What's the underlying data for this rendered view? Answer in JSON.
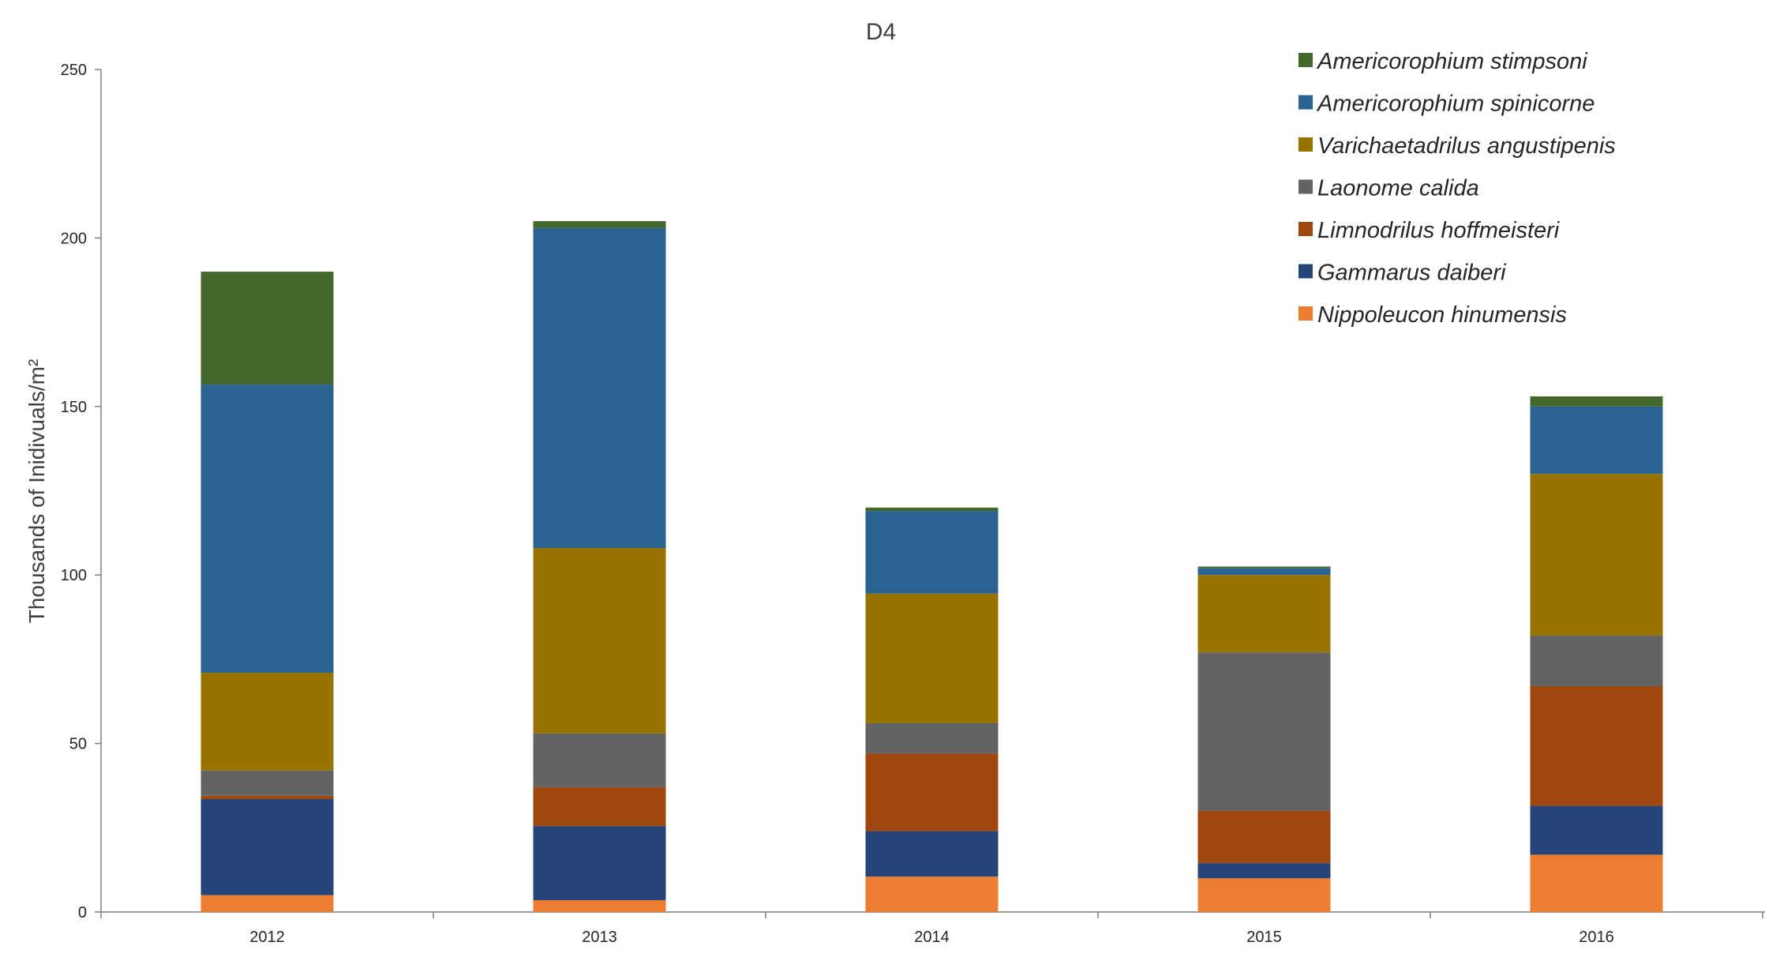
{
  "chart_data": {
    "type": "bar",
    "stacked": true,
    "title": "D4",
    "xlabel": "",
    "ylabel": "Thousands of Inidivuals/m²",
    "ylim": [
      0,
      250
    ],
    "yticks": [
      0,
      50,
      100,
      150,
      200,
      250
    ],
    "grid": false,
    "legend_position": "top-right",
    "categories": [
      "2012",
      "2013",
      "2014",
      "2015",
      "2016"
    ],
    "series": [
      {
        "name": "Nippoleucon hinumensis",
        "color": "#ED7D31",
        "values": [
          5,
          3.5,
          10.5,
          10,
          17
        ]
      },
      {
        "name": "Gammarus daiberi",
        "color": "#264478",
        "values": [
          28.5,
          22,
          13.5,
          4.5,
          14.5
        ]
      },
      {
        "name": "Limnodrilus hoffmeisteri",
        "color": "#9E480E",
        "values": [
          1,
          11.5,
          23,
          15.5,
          35.5
        ]
      },
      {
        "name": "Laonome calida",
        "color": "#636363",
        "values": [
          7.5,
          16,
          9,
          47,
          15
        ]
      },
      {
        "name": "Varichaetadrilus angustipenis",
        "color": "#997300",
        "values": [
          29,
          55,
          38.5,
          23,
          48
        ]
      },
      {
        "name": "Americorophium spinicorne",
        "color": "#2A6292",
        "values": [
          85.5,
          95,
          24.5,
          2,
          20
        ]
      },
      {
        "name": "Americorophium stimpsoni",
        "color": "#43682B",
        "values": [
          33.5,
          2,
          1,
          0.5,
          3
        ]
      }
    ]
  }
}
